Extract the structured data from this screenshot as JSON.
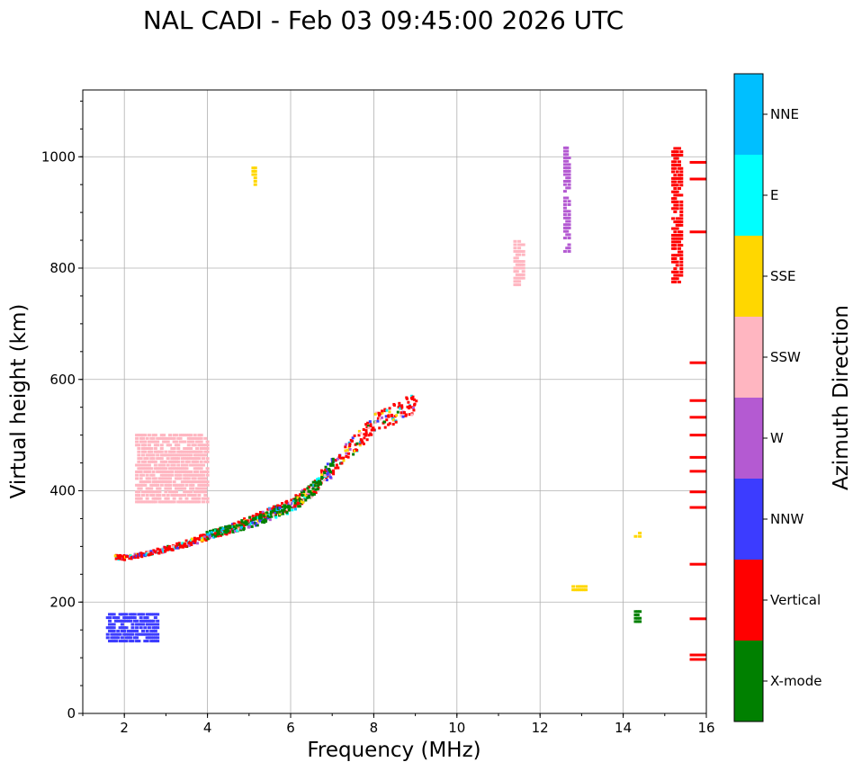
{
  "chart_data": {
    "type": "scatter",
    "title": "NAL CADI - Feb 03 09:45:00 2026 UTC",
    "xlabel": "Frequency (MHz)",
    "ylabel": "Virtual height (km)",
    "xlim": [
      1,
      16
    ],
    "ylim": [
      0,
      1120
    ],
    "xticks": [
      2,
      4,
      6,
      8,
      10,
      12,
      14,
      16
    ],
    "yticks": [
      0,
      200,
      400,
      600,
      800,
      1000
    ],
    "grid": true,
    "colorbar": {
      "label": "Azimuth Direction",
      "categories": [
        {
          "name": "X-mode",
          "color": "#008000"
        },
        {
          "name": "Vertical",
          "color": "#ff0000"
        },
        {
          "name": "NNW",
          "color": "#3c3cff"
        },
        {
          "name": "W",
          "color": "#b45ad2"
        },
        {
          "name": "SSW",
          "color": "#ffb6c1"
        },
        {
          "name": "SSE",
          "color": "#ffd700"
        },
        {
          "name": "E",
          "color": "#00ffff"
        },
        {
          "name": "NNE",
          "color": "#00bfff"
        }
      ]
    },
    "f_layer_traces": [
      {
        "name": "O-mode F-trace",
        "category": "Vertical",
        "x": [
          1.8,
          2.0,
          2.5,
          3.0,
          3.5,
          4.0,
          4.5,
          5.0,
          5.5,
          6.0,
          6.5,
          7.0,
          7.5,
          8.0,
          8.5,
          9.0
        ],
        "y": [
          280,
          280,
          285,
          295,
          305,
          318,
          330,
          345,
          360,
          375,
          400,
          440,
          480,
          520,
          540,
          560
        ]
      },
      {
        "name": "X-mode F-trace",
        "category": "X-mode",
        "x": [
          4.0,
          4.5,
          5.0,
          5.5,
          6.0,
          6.5,
          7.0
        ],
        "y": [
          320,
          330,
          340,
          355,
          370,
          400,
          450
        ]
      }
    ],
    "echo_patches": [
      {
        "x": [
          1.6,
          2.8
        ],
        "y": [
          130,
          175
        ],
        "category": "NNW"
      },
      {
        "x": [
          2.3,
          4.0
        ],
        "y": [
          380,
          500
        ],
        "category": "SSW"
      },
      {
        "x": [
          5.1,
          5.1
        ],
        "y": [
          950,
          980
        ],
        "category": "SSE"
      },
      {
        "x": [
          12.6,
          12.7
        ],
        "y": [
          830,
          1015
        ],
        "category": "W"
      },
      {
        "x": [
          15.2,
          15.4
        ],
        "y": [
          775,
          1015
        ],
        "category": "Vertical"
      },
      {
        "x": [
          14.3,
          14.4
        ],
        "y": [
          165,
          185
        ],
        "category": "X-mode"
      },
      {
        "x": [
          14.3,
          14.4
        ],
        "y": [
          318,
          318
        ],
        "category": "SSE"
      },
      {
        "x": [
          12.8,
          13.1
        ],
        "y": [
          222,
          222
        ],
        "category": "SSE"
      },
      {
        "x": [
          11.4,
          11.6
        ],
        "y": [
          770,
          845
        ],
        "category": "SSW"
      }
    ]
  }
}
